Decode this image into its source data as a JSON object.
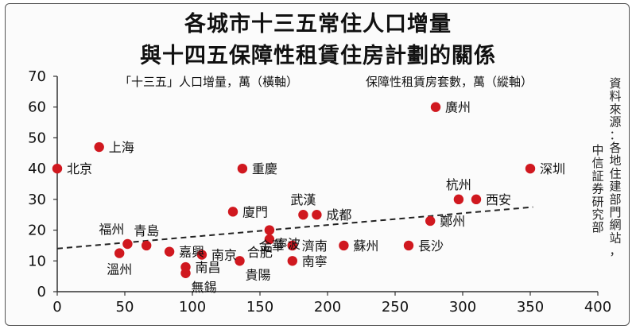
{
  "title_line1": "各城市十三五常住人口增量",
  "title_line2": "與十四五保障性租賃住房計劃的關係",
  "x_axis_note": "「十三五」人口增量，萬（橫軸）",
  "y_axis_note": "保障性租賃房套數，萬（縱軸）",
  "source_col1": "資料來源：各地住建部門網站，",
  "source_col2": "中信証券研究部",
  "colors": {
    "point": "#d0181f",
    "trend": "#222222",
    "text": "#111111"
  },
  "chart_data": {
    "type": "scatter",
    "title": "各城市十三五常住人口增量 與十四五保障性租賃住房計劃的關係",
    "xlabel": "「十三五」人口增量，萬（橫軸）",
    "ylabel": "保障性租賃房套數，萬（縱軸）",
    "xlim": [
      0,
      400
    ],
    "ylim": [
      0,
      70
    ],
    "x_ticks": [
      0,
      50,
      100,
      150,
      200,
      250,
      300,
      350,
      400
    ],
    "y_ticks": [
      0,
      10,
      20,
      30,
      40,
      50,
      60,
      70
    ],
    "x_tick_labels": [
      "0",
      "50",
      "100",
      "150",
      "200",
      "250",
      "300",
      "350",
      "400"
    ],
    "y_tick_labels": [
      "0",
      "10",
      "20",
      "30",
      "40",
      "50",
      "60",
      "70"
    ],
    "points": [
      {
        "label": "北京",
        "x": 0,
        "y": 40,
        "pos": "right"
      },
      {
        "label": "上海",
        "x": 31,
        "y": 47,
        "pos": "right"
      },
      {
        "label": "福州",
        "x": 52,
        "y": 15.5,
        "pos": "above-left"
      },
      {
        "label": "溫州",
        "x": 46,
        "y": 12.5,
        "pos": "below"
      },
      {
        "label": "青島",
        "x": 66,
        "y": 15,
        "pos": "above"
      },
      {
        "label": "嘉興",
        "x": 83,
        "y": 13,
        "pos": "right"
      },
      {
        "label": "南京",
        "x": 107,
        "y": 12,
        "pos": "right"
      },
      {
        "label": "南昌",
        "x": 95,
        "y": 8,
        "pos": "right"
      },
      {
        "label": "無錫",
        "x": 95,
        "y": 6,
        "pos": "below-right"
      },
      {
        "label": "廈門",
        "x": 130,
        "y": 26,
        "pos": "right"
      },
      {
        "label": "重慶",
        "x": 137,
        "y": 40,
        "pos": "right"
      },
      {
        "label": "貴陽",
        "x": 135,
        "y": 10,
        "pos": "below-right"
      },
      {
        "label": "寧波",
        "x": 157,
        "y": 20,
        "pos": "below-right"
      },
      {
        "label": "合肥",
        "x": 157,
        "y": 17,
        "pos": "below-left"
      },
      {
        "label": "金華",
        "x": 174,
        "y": 15,
        "pos": "left"
      },
      {
        "label": "濟南",
        "x": 174,
        "y": 15,
        "pos": "right"
      },
      {
        "label": "南寧",
        "x": 174,
        "y": 10,
        "pos": "right"
      },
      {
        "label": "武漢",
        "x": 182,
        "y": 25,
        "pos": "above"
      },
      {
        "label": "成都",
        "x": 192,
        "y": 25,
        "pos": "right"
      },
      {
        "label": "蘇州",
        "x": 212,
        "y": 15,
        "pos": "right"
      },
      {
        "label": "長沙",
        "x": 260,
        "y": 15,
        "pos": "right"
      },
      {
        "label": "廣州",
        "x": 280,
        "y": 60,
        "pos": "right"
      },
      {
        "label": "杭州",
        "x": 297,
        "y": 30,
        "pos": "above"
      },
      {
        "label": "鄭州",
        "x": 276,
        "y": 23,
        "pos": "right"
      },
      {
        "label": "西安",
        "x": 310,
        "y": 30,
        "pos": "right"
      },
      {
        "label": "深圳",
        "x": 350,
        "y": 40,
        "pos": "right"
      }
    ],
    "trendline": {
      "style": "dashed",
      "x_start": 0,
      "y_start": 14,
      "x_end": 352,
      "y_end": 27.5
    },
    "grid": false,
    "legend": "none"
  }
}
